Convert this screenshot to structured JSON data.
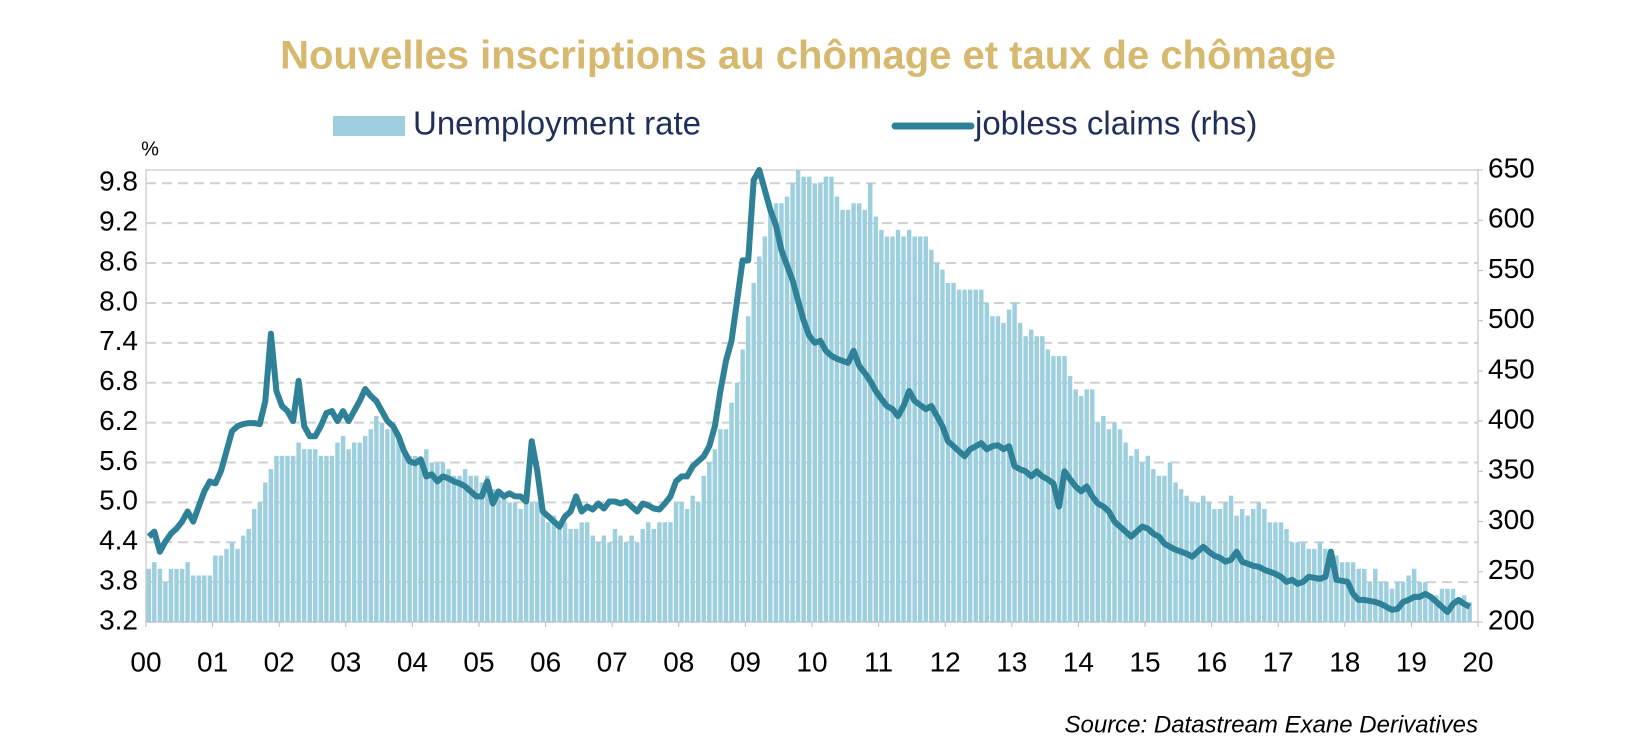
{
  "chart_data": {
    "type": "bar",
    "title": "Nouvelles inscriptions au chômage et taux de chômage",
    "y_label": "%",
    "source": "Source: Datastream Exane Derivatives",
    "legend": "top",
    "grid": true,
    "xlim": [
      0,
      20
    ],
    "xticks": [
      {
        "value": 0,
        "label": "00"
      },
      {
        "value": 1,
        "label": "01"
      },
      {
        "value": 2,
        "label": "02"
      },
      {
        "value": 3,
        "label": "03"
      },
      {
        "value": 4,
        "label": "04"
      },
      {
        "value": 5,
        "label": "05"
      },
      {
        "value": 6,
        "label": "06"
      },
      {
        "value": 7,
        "label": "07"
      },
      {
        "value": 8,
        "label": "08"
      },
      {
        "value": 9,
        "label": "09"
      },
      10,
      11,
      12,
      13,
      14,
      15,
      16,
      17,
      18,
      19,
      20
    ],
    "ylim": [
      3.2,
      10.0
    ],
    "yticks": [
      3.2,
      3.8,
      4.4,
      {
        "value": 5,
        "label": "5.0"
      },
      5.6,
      6.2,
      6.8,
      7.4,
      {
        "value": 8,
        "label": "8.0"
      },
      8.6,
      9.2,
      9.8
    ],
    "y2lim": [
      200,
      650
    ],
    "y2ticks": [
      200,
      250,
      300,
      350,
      400,
      450,
      500,
      550,
      600,
      650
    ],
    "x": [
      0,
      0.083,
      0.167,
      0.25,
      0.333,
      0.417,
      0.5,
      0.583,
      0.667,
      0.75,
      0.833,
      0.917,
      1,
      1.083,
      1.167,
      1.25,
      1.333,
      1.417,
      1.5,
      1.583,
      1.667,
      1.75,
      1.833,
      1.917,
      2,
      2.083,
      2.167,
      2.25,
      2.333,
      2.417,
      2.5,
      2.583,
      2.667,
      2.75,
      2.833,
      2.917,
      3,
      3.083,
      3.167,
      3.25,
      3.333,
      3.417,
      3.5,
      3.583,
      3.667,
      3.75,
      3.833,
      3.917,
      4,
      4.083,
      4.167,
      4.25,
      4.333,
      4.417,
      4.5,
      4.583,
      4.667,
      4.75,
      4.833,
      4.917,
      5,
      5.083,
      5.167,
      5.25,
      5.333,
      5.417,
      5.5,
      5.583,
      5.667,
      5.75,
      5.833,
      5.917,
      6,
      6.083,
      6.167,
      6.25,
      6.333,
      6.417,
      6.5,
      6.583,
      6.667,
      6.75,
      6.833,
      6.917,
      7,
      7.083,
      7.167,
      7.25,
      7.333,
      7.417,
      7.5,
      7.583,
      7.667,
      7.75,
      7.833,
      7.917,
      8,
      8.083,
      8.167,
      8.25,
      8.333,
      8.417,
      8.5,
      8.583,
      8.667,
      8.75,
      8.833,
      8.917,
      9,
      9.083,
      9.167,
      9.25,
      9.333,
      9.417,
      9.5,
      9.583,
      9.667,
      9.75,
      9.833,
      9.917,
      10,
      10.083,
      10.167,
      10.25,
      10.333,
      10.417,
      10.5,
      10.583,
      10.667,
      10.75,
      10.833,
      10.917,
      11,
      11.083,
      11.167,
      11.25,
      11.333,
      11.417,
      11.5,
      11.583,
      11.667,
      11.75,
      11.833,
      11.917,
      12,
      12.083,
      12.167,
      12.25,
      12.333,
      12.417,
      12.5,
      12.583,
      12.667,
      12.75,
      12.833,
      12.917,
      13,
      13.083,
      13.167,
      13.25,
      13.333,
      13.417,
      13.5,
      13.583,
      13.667,
      13.75,
      13.833,
      13.917,
      14,
      14.083,
      14.167,
      14.25,
      14.333,
      14.417,
      14.5,
      14.583,
      14.667,
      14.75,
      14.833,
      14.917,
      15,
      15.083,
      15.167,
      15.25,
      15.333,
      15.417,
      15.5,
      15.583,
      15.667,
      15.75,
      15.833,
      15.917,
      16,
      16.083,
      16.167,
      16.25,
      16.333,
      16.417,
      16.5,
      16.583,
      16.667,
      16.75,
      16.833,
      16.917,
      17,
      17.083,
      17.167,
      17.25,
      17.333,
      17.417,
      17.5,
      17.583,
      17.667,
      17.75,
      17.833,
      17.917,
      18,
      18.083,
      18.167,
      18.25,
      18.333,
      18.417,
      18.5,
      18.583,
      18.667,
      18.75,
      18.833,
      18.917,
      19,
      19.083,
      19.167,
      19.25,
      19.333,
      19.417,
      19.5,
      19.583,
      19.667,
      19.75,
      19.833
    ],
    "series": [
      {
        "name": "Unemployment rate",
        "type": "bar",
        "color": "#9dcfdf",
        "values": [
          4.0,
          4.1,
          4.0,
          3.8,
          4.0,
          4.0,
          4.0,
          4.1,
          3.9,
          3.9,
          3.9,
          3.9,
          4.2,
          4.2,
          4.3,
          4.4,
          4.3,
          4.5,
          4.6,
          4.9,
          5.0,
          5.3,
          5.5,
          5.7,
          5.7,
          5.7,
          5.7,
          5.9,
          5.8,
          5.8,
          5.8,
          5.7,
          5.7,
          5.7,
          5.9,
          6.0,
          5.8,
          5.9,
          5.9,
          6.0,
          6.1,
          6.3,
          6.2,
          6.1,
          6.1,
          6.0,
          5.8,
          5.7,
          5.7,
          5.6,
          5.8,
          5.6,
          5.6,
          5.6,
          5.5,
          5.4,
          5.4,
          5.5,
          5.4,
          5.4,
          5.3,
          5.4,
          5.2,
          5.2,
          5.1,
          5.0,
          5.0,
          4.9,
          5.0,
          5.0,
          5.0,
          4.9,
          4.7,
          4.8,
          4.7,
          4.7,
          4.6,
          4.6,
          4.7,
          4.7,
          4.5,
          4.4,
          4.5,
          4.4,
          4.6,
          4.5,
          4.4,
          4.5,
          4.4,
          4.6,
          4.7,
          4.6,
          4.7,
          4.7,
          4.7,
          5.0,
          5.0,
          4.9,
          5.1,
          5.0,
          5.4,
          5.6,
          5.8,
          6.1,
          6.1,
          6.5,
          6.8,
          7.3,
          7.8,
          8.3,
          8.7,
          9.0,
          9.4,
          9.5,
          9.5,
          9.6,
          9.8,
          10.0,
          9.9,
          9.9,
          9.8,
          9.8,
          9.9,
          9.9,
          9.6,
          9.4,
          9.4,
          9.5,
          9.5,
          9.4,
          9.8,
          9.3,
          9.1,
          9.0,
          9.0,
          9.1,
          9.0,
          9.1,
          9.0,
          9.0,
          9.0,
          8.8,
          8.6,
          8.5,
          8.3,
          8.3,
          8.2,
          8.2,
          8.2,
          8.2,
          8.2,
          8.0,
          7.8,
          7.8,
          7.7,
          7.9,
          8.0,
          7.7,
          7.5,
          7.6,
          7.5,
          7.5,
          7.3,
          7.2,
          7.2,
          7.2,
          6.9,
          6.7,
          6.6,
          6.7,
          6.7,
          6.2,
          6.3,
          6.1,
          6.2,
          6.1,
          5.9,
          5.7,
          5.8,
          5.6,
          5.7,
          5.5,
          5.4,
          5.4,
          5.6,
          5.3,
          5.2,
          5.1,
          5.0,
          5.0,
          5.1,
          5.0,
          4.9,
          4.9,
          5.0,
          5.1,
          4.8,
          4.9,
          4.8,
          4.9,
          5.0,
          4.9,
          4.7,
          4.7,
          4.7,
          4.6,
          4.4,
          4.4,
          4.4,
          4.3,
          4.3,
          4.4,
          4.3,
          4.2,
          4.2,
          4.1,
          4.1,
          4.1,
          4.0,
          4.0,
          3.8,
          4.0,
          3.8,
          3.8,
          3.7,
          3.8,
          3.8,
          3.9,
          4.0,
          3.8,
          3.8,
          3.6,
          3.6,
          3.7,
          3.7,
          3.7,
          3.5,
          3.6,
          3.5
        ]
      },
      {
        "name": "jobless claims (rhs)",
        "type": "line",
        "axis": "y2",
        "color": "#2e8196",
        "values": [
          285,
          290,
          270,
          280,
          288,
          293,
          300,
          310,
          300,
          315,
          330,
          340,
          338,
          350,
          370,
          390,
          395,
          397,
          398,
          398,
          397,
          420,
          487,
          430,
          415,
          410,
          400,
          440,
          395,
          385,
          385,
          395,
          408,
          410,
          400,
          410,
          400,
          410,
          420,
          432,
          425,
          420,
          410,
          400,
          395,
          385,
          370,
          360,
          358,
          362,
          345,
          347,
          340,
          345,
          343,
          340,
          338,
          335,
          330,
          325,
          325,
          340,
          318,
          330,
          325,
          328,
          325,
          325,
          320,
          380,
          350,
          310,
          305,
          300,
          295,
          305,
          310,
          325,
          310,
          315,
          312,
          318,
          313,
          320,
          320,
          318,
          320,
          315,
          310,
          318,
          316,
          313,
          312,
          318,
          325,
          340,
          345,
          345,
          355,
          360,
          365,
          375,
          395,
          430,
          460,
          480,
          520,
          560,
          560,
          640,
          650,
          630,
          610,
          595,
          570,
          555,
          540,
          520,
          500,
          485,
          478,
          480,
          470,
          465,
          462,
          460,
          458,
          470,
          455,
          448,
          440,
          430,
          422,
          415,
          412,
          405,
          415,
          430,
          420,
          416,
          412,
          415,
          405,
          395,
          380,
          375,
          370,
          365,
          372,
          375,
          378,
          372,
          375,
          376,
          372,
          375,
          355,
          352,
          350,
          345,
          350,
          345,
          342,
          338,
          315,
          350,
          342,
          335,
          330,
          335,
          325,
          318,
          315,
          310,
          300,
          295,
          290,
          285,
          290,
          295,
          293,
          288,
          285,
          278,
          275,
          272,
          270,
          268,
          265,
          270,
          275,
          270,
          266,
          264,
          260,
          262,
          270,
          260,
          258,
          256,
          255,
          252,
          250,
          248,
          245,
          240,
          242,
          238,
          240,
          245,
          244,
          243,
          245,
          270,
          242,
          241,
          240,
          228,
          222,
          222,
          221,
          220,
          218,
          215,
          212,
          213,
          220,
          222,
          225,
          225,
          228,
          225,
          220,
          215,
          210,
          218,
          222,
          218,
          215
        ]
      }
    ]
  }
}
